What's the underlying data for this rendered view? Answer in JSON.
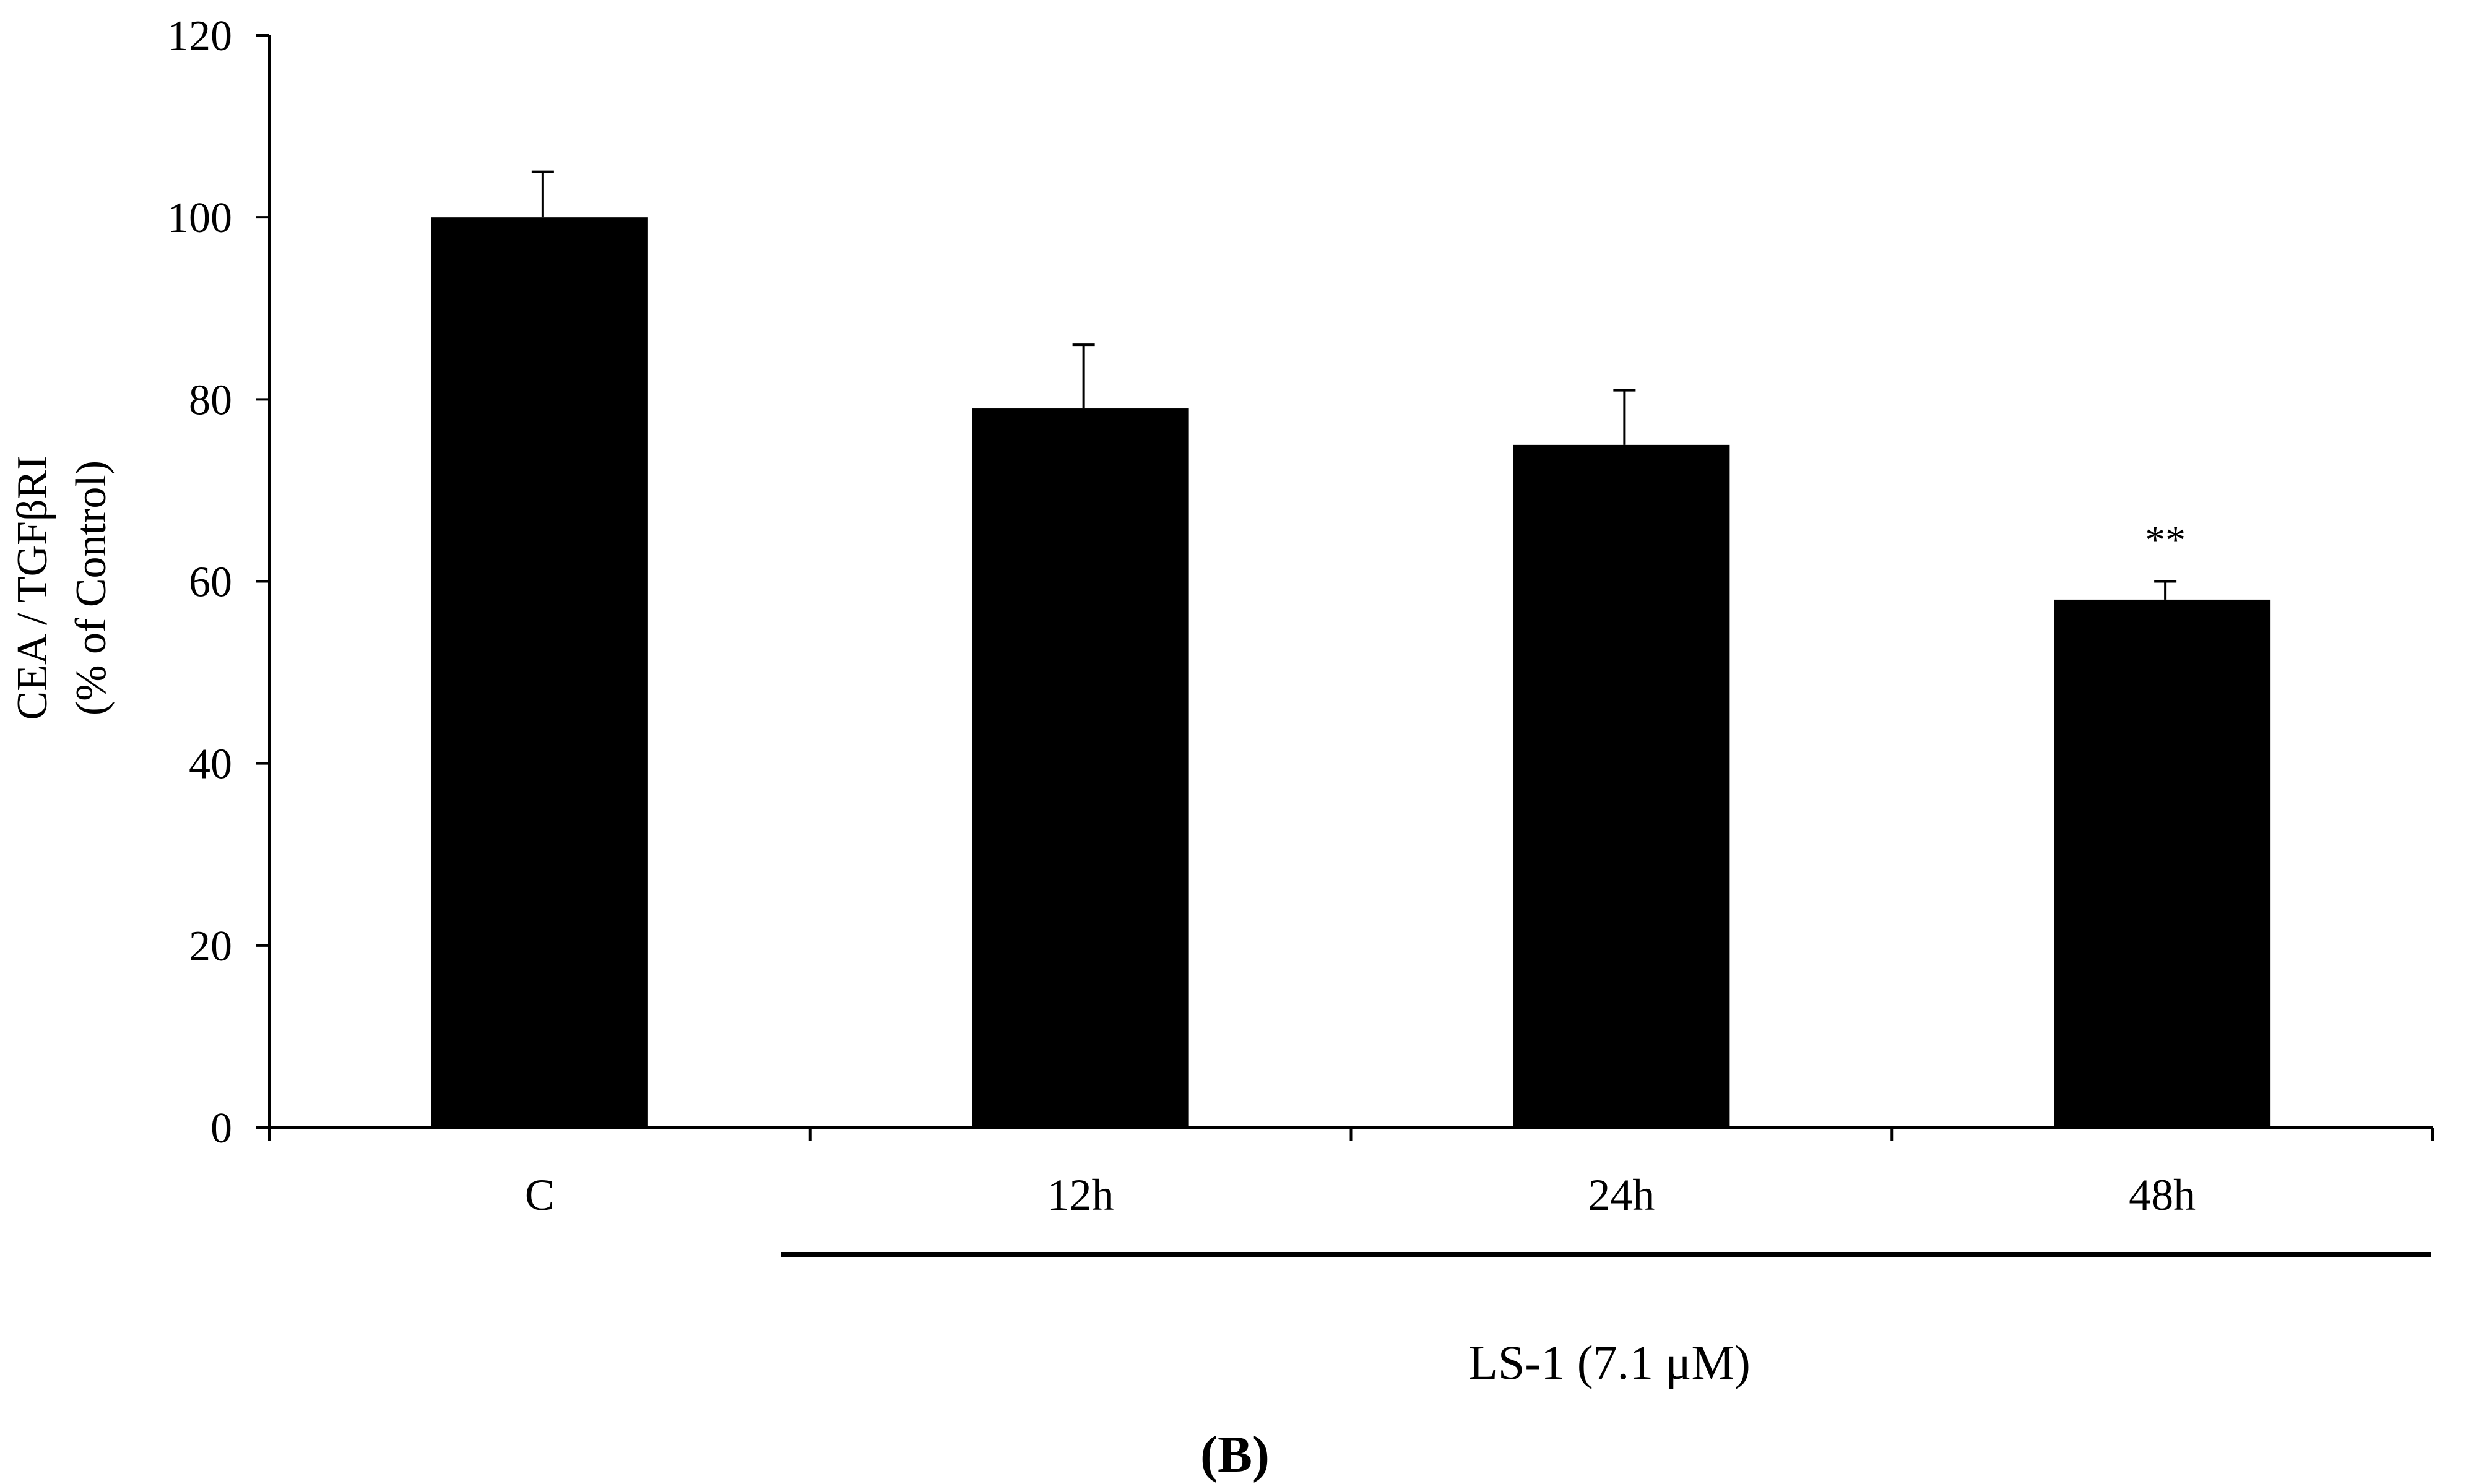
{
  "chart_data": {
    "type": "bar",
    "categories": [
      "C",
      "12h",
      "24h",
      "48h"
    ],
    "values": [
      100,
      79,
      75,
      58
    ],
    "errors": [
      5,
      7,
      6,
      2
    ],
    "significance": [
      "",
      "",
      "",
      "**"
    ],
    "ylabel_line1": "CEA / TGFβRI",
    "ylabel_line2": "(% of Control)",
    "xlabel": "",
    "ylim": [
      0,
      120
    ],
    "yticks": [
      0,
      20,
      40,
      60,
      80,
      100,
      120
    ],
    "group_label": "LS-1 (7.1 μM)",
    "panel_label_open": "(",
    "panel_label_letter": "B",
    "panel_label_close": ")",
    "bar_color": "#000000",
    "grid": false,
    "legend": "none"
  }
}
